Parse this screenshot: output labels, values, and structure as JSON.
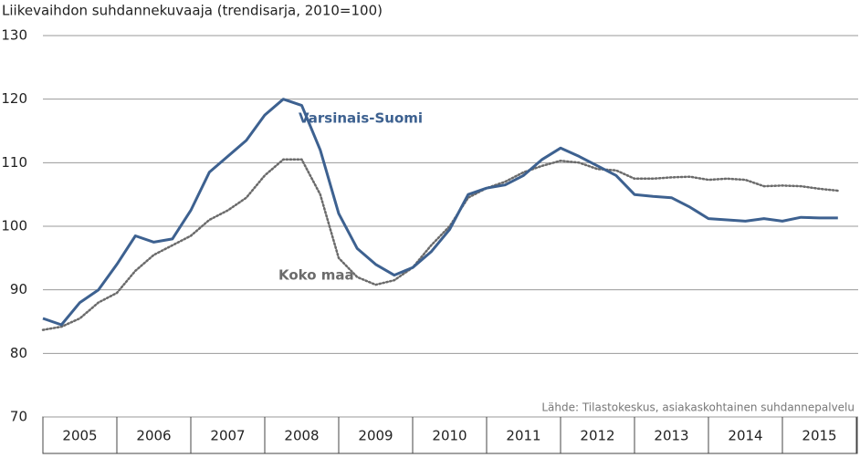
{
  "chart_data": {
    "type": "line",
    "title": "Liikevaihdon suhdannekuvaaja (trendisarja, 2010=100)",
    "source": "Lähde: Tilastokeskus, asiakaskohtainen suhdannepalvelu",
    "categories": [
      "2005",
      "2006",
      "2007",
      "2008",
      "2009",
      "2010",
      "2011",
      "2012",
      "2013",
      "2014",
      "2015"
    ],
    "x": [
      2005,
      2005.25,
      2005.5,
      2005.75,
      2006,
      2006.25,
      2006.5,
      2006.75,
      2007,
      2007.25,
      2007.5,
      2007.75,
      2008,
      2008.25,
      2008.5,
      2008.75,
      2009,
      2009.25,
      2009.5,
      2009.75,
      2010,
      2010.25,
      2010.5,
      2010.75,
      2011,
      2011.25,
      2011.5,
      2011.75,
      2012,
      2012.25,
      2012.5,
      2012.75,
      2013,
      2013.25,
      2013.5,
      2013.75,
      2014,
      2014.25,
      2014.5,
      2014.75,
      2015,
      2015.25,
      2015.5,
      2015.75
    ],
    "series": [
      {
        "name": "Varsinais-Suomi",
        "color": "#3d6190",
        "dash": false,
        "values": [
          85.5,
          84.5,
          88,
          90,
          94,
          98.5,
          97.5,
          98,
          102.5,
          108.5,
          111,
          113.5,
          117.5,
          120,
          119,
          112,
          102,
          96.5,
          94,
          92.3,
          93.5,
          96,
          99.5,
          105,
          106,
          106.5,
          108,
          110.5,
          112.3,
          111,
          109.5,
          108,
          105,
          104.7,
          104.5,
          103,
          101.2,
          101,
          100.8,
          101.2,
          100.8,
          101.4,
          101.3,
          101.3
        ]
      },
      {
        "name": "Koko maa",
        "color": "#6b6b6b",
        "dash": true,
        "values": [
          83.7,
          84.2,
          85.5,
          88,
          89.5,
          93,
          95.5,
          97,
          98.5,
          101,
          102.5,
          104.5,
          108,
          110.5,
          110.5,
          105,
          95,
          92,
          90.8,
          91.5,
          93.5,
          97,
          100,
          104.5,
          106,
          107,
          108.5,
          109.5,
          110.3,
          110,
          109,
          108.8,
          107.5,
          107.5,
          107.7,
          107.8,
          107.3,
          107.5,
          107.3,
          106.3,
          106.4,
          106.3,
          105.9,
          105.6
        ]
      }
    ],
    "xlim": [
      2005,
      2016
    ],
    "xticks": [
      2005,
      2006,
      2007,
      2008,
      2009,
      2010,
      2011,
      2012,
      2013,
      2014,
      2015,
      2016
    ],
    "ylim": [
      70,
      130
    ],
    "yticks": [
      70,
      80,
      90,
      100,
      110,
      120,
      130
    ],
    "grid": true
  }
}
